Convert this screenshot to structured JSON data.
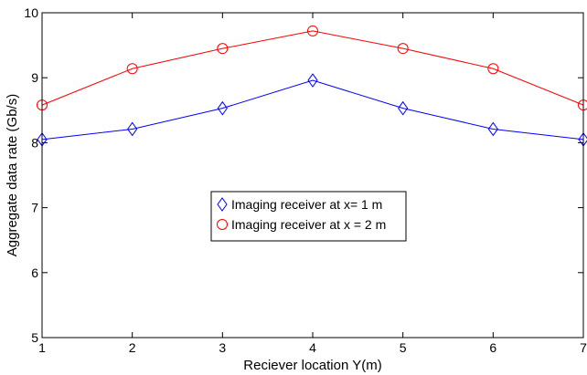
{
  "chart_data": {
    "type": "line",
    "xlabel": "Reciever location Y(m)",
    "ylabel": "Aggregate data rate (Gb/s)",
    "xlim": [
      1,
      7
    ],
    "ylim": [
      5,
      10
    ],
    "xticks": [
      "1",
      "2",
      "3",
      "4",
      "5",
      "6",
      "7"
    ],
    "yticks": [
      "5",
      "6",
      "7",
      "8",
      "9",
      "10"
    ],
    "x": [
      1,
      2,
      3,
      4,
      5,
      6,
      7
    ],
    "grid": false,
    "legend_position": "center",
    "series": [
      {
        "name": "Imaging receiver at x= 1 m",
        "values": [
          8.05,
          8.21,
          8.53,
          8.96,
          8.53,
          8.21,
          8.05
        ],
        "color": "#0000ff",
        "marker": "diamond"
      },
      {
        "name": "Imaging receiver at x = 2 m",
        "values": [
          8.58,
          9.14,
          9.45,
          9.72,
          9.45,
          9.14,
          8.58
        ],
        "color": "#ff0000",
        "marker": "circle"
      }
    ]
  }
}
